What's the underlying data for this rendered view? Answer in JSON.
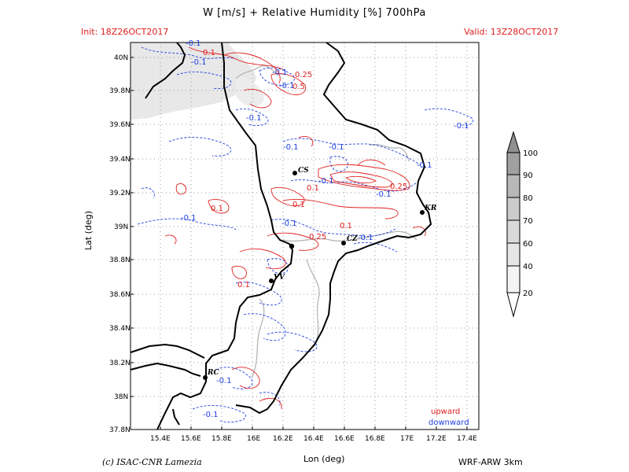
{
  "title": "W [m/s] + Relative Humidity [%] 700hPa",
  "init": "Init: 18Z26OCT2017",
  "valid": "Valid: 13Z28OCT2017",
  "axes": {
    "xlabel": "Lon (deg)",
    "ylabel": "Lat (deg)",
    "lon_ticks": [
      "15.4E",
      "15.6E",
      "15.8E",
      "16E",
      "16.2E",
      "16.4E",
      "16.6E",
      "16.8E",
      "17E",
      "17.2E",
      "17.4E"
    ],
    "lat_ticks": [
      "40N",
      "39.8N",
      "39.6N",
      "39.4N",
      "39.2N",
      "39N",
      "38.8N",
      "38.6N",
      "38.4N",
      "38.2N",
      "38N",
      "37.8N"
    ]
  },
  "cities": [
    {
      "code": "CS"
    },
    {
      "code": "KR"
    },
    {
      "code": "CZ"
    },
    {
      "code": "VV"
    },
    {
      "code": "RC"
    }
  ],
  "contour_labels": {
    "upward": [
      "0.1",
      "0.25",
      "0.5",
      "0.1",
      "0.1",
      "0.25",
      "0.1",
      "0.25",
      "0.1",
      "0.1"
    ],
    "downward": [
      "-0.1",
      "-0.1",
      "-0.1",
      "-0.1",
      "-0.1",
      "-0.1",
      "-0.1",
      "-0.1",
      "-0.1",
      "-0.1",
      "-0.1",
      "-0.1",
      "-0.1",
      "-0.1",
      "-0.1",
      "-0.1"
    ]
  },
  "legend": {
    "upward": "upward",
    "downward": "downward",
    "upward_color": "#e02020",
    "downward_color": "#2040e0"
  },
  "colorbar": {
    "labels": [
      "100",
      "90",
      "80",
      "70",
      "60",
      "40",
      "20"
    ]
  },
  "footer": {
    "credit": "(c) ISAC-CNR Lamezia",
    "model": "WRF-ARW 3km"
  }
}
